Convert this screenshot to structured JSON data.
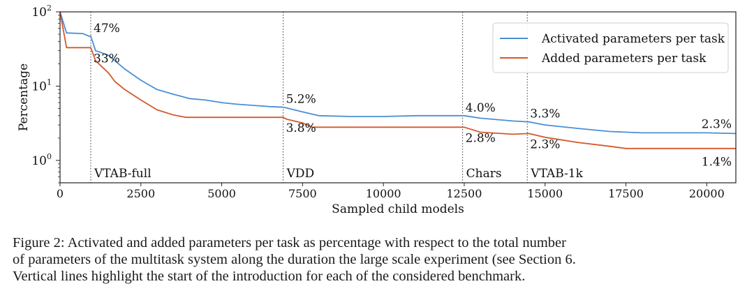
{
  "chart_data": {
    "type": "line",
    "title": "",
    "xlabel": "Sampled child models",
    "ylabel": "Percentage",
    "xlim": [
      0,
      20900
    ],
    "ylim": [
      0.5,
      100
    ],
    "yscale": "log",
    "x_ticks": [
      0,
      2500,
      5000,
      7500,
      10000,
      12500,
      15000,
      17500,
      20000
    ],
    "x_tick_labels": [
      "0",
      "2500",
      "5000",
      "7500",
      "10000",
      "12500",
      "15000",
      "17500",
      "20000"
    ],
    "y_ticks": [
      1,
      10,
      100
    ],
    "y_tick_labels": [
      {
        "base": "10",
        "exp": "0"
      },
      {
        "base": "10",
        "exp": "1"
      },
      {
        "base": "10",
        "exp": "2"
      }
    ],
    "grid": false,
    "legend_position": "top-right",
    "series": [
      {
        "name": "Activated parameters per task",
        "color": "#4a8fd6",
        "x": [
          0,
          200,
          700,
          900,
          950,
          1100,
          1200,
          1500,
          2000,
          2500,
          3000,
          3500,
          4000,
          4500,
          5000,
          5500,
          6000,
          6500,
          6900,
          7000,
          7500,
          8000,
          9000,
          10000,
          11000,
          12000,
          12500,
          13000,
          14000,
          14500,
          15000,
          16000,
          17000,
          18000,
          19000,
          20000,
          20900
        ],
        "y": [
          100,
          52,
          51,
          47,
          47,
          30,
          29,
          26,
          17,
          12,
          9,
          7.8,
          6.8,
          6.5,
          6,
          5.7,
          5.5,
          5.3,
          5.2,
          5.1,
          4.5,
          4.0,
          3.9,
          3.9,
          4.0,
          4.0,
          4.0,
          3.7,
          3.4,
          3.3,
          3.0,
          2.7,
          2.45,
          2.35,
          2.35,
          2.35,
          2.3
        ]
      },
      {
        "name": "Added parameters per task",
        "color": "#d5582a",
        "x": [
          0,
          200,
          900,
          950,
          1100,
          1500,
          1700,
          2000,
          2500,
          3000,
          3500,
          3900,
          5000,
          6900,
          7000,
          7500,
          7800,
          10000,
          12500,
          13000,
          14000,
          14500,
          15000,
          16000,
          17000,
          17500,
          18000,
          19000,
          20000,
          20900
        ],
        "y": [
          100,
          33,
          33,
          33,
          22,
          15,
          11.5,
          9,
          6.5,
          4.8,
          4.1,
          3.8,
          3.8,
          3.8,
          3.6,
          3.2,
          2.8,
          2.8,
          2.8,
          2.4,
          2.25,
          2.3,
          2.05,
          1.75,
          1.55,
          1.45,
          1.45,
          1.45,
          1.45,
          1.45
        ]
      }
    ],
    "vertical_lines": [
      {
        "x": 950,
        "label": "VTAB-full"
      },
      {
        "x": 6900,
        "label": "VDD"
      },
      {
        "x": 12450,
        "label": "Chars"
      },
      {
        "x": 14450,
        "label": "VTAB-1k"
      }
    ],
    "annotations": [
      {
        "x": 950,
        "y": 47,
        "text": "47%",
        "series": "activated"
      },
      {
        "x": 950,
        "y": 33,
        "text": "33%",
        "series": "added"
      },
      {
        "x": 6900,
        "y": 5.2,
        "text": "5.2%",
        "series": "activated"
      },
      {
        "x": 6900,
        "y": 3.8,
        "text": "3.8%",
        "series": "added"
      },
      {
        "x": 12450,
        "y": 4.0,
        "text": "4.0%",
        "series": "activated"
      },
      {
        "x": 12450,
        "y": 2.8,
        "text": "2.8%",
        "series": "added"
      },
      {
        "x": 14450,
        "y": 3.3,
        "text": "3.3%",
        "series": "activated"
      },
      {
        "x": 14450,
        "y": 2.3,
        "text": "2.3%",
        "series": "added"
      },
      {
        "x": 20900,
        "y": 2.3,
        "text": "2.3%",
        "series": "activated"
      },
      {
        "x": 20900,
        "y": 1.4,
        "text": "1.4%",
        "series": "added"
      }
    ]
  },
  "caption": {
    "lines": [
      "Figure 2: Activated and added parameters per task as percentage with respect to the total number",
      "of parameters of the multitask system along the duration the large scale experiment (see Section 6.",
      "Vertical lines highlight the start of the introduction for each of the considered benchmark."
    ]
  }
}
